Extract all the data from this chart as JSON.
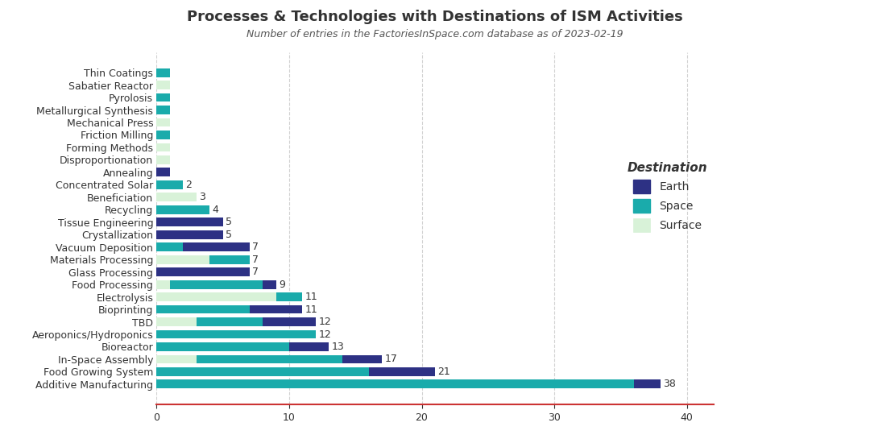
{
  "title": "Processes & Technologies with Destinations of ISM Activities",
  "subtitle": "Number of entries in the FactoriesInSpace.com database as of 2023-02-19",
  "categories": [
    "Thin Coatings",
    "Sabatier Reactor",
    "Pyrolosis",
    "Metallurgical Synthesis",
    "Mechanical Press",
    "Friction Milling",
    "Forming Methods",
    "Disproportionation",
    "Annealing",
    "Concentrated Solar",
    "Beneficiation",
    "Recycling",
    "Tissue Engineering",
    "Crystallization",
    "Vacuum Deposition",
    "Materials Processing",
    "Glass Processing",
    "Food Processing",
    "Electrolysis",
    "Bioprinting",
    "TBD",
    "Aeroponics/Hydroponics",
    "Bioreactor",
    "In-Space Assembly",
    "Food Growing System",
    "Additive Manufacturing"
  ],
  "earth": [
    0,
    0,
    0,
    0,
    0,
    0,
    0,
    0,
    1,
    0,
    0,
    0,
    5,
    5,
    5,
    0,
    7,
    1,
    0,
    4,
    4,
    0,
    3,
    3,
    5,
    2
  ],
  "space": [
    1,
    0,
    1,
    1,
    0,
    1,
    0,
    0,
    0,
    2,
    0,
    4,
    0,
    0,
    2,
    3,
    0,
    7,
    2,
    7,
    5,
    12,
    10,
    11,
    16,
    36
  ],
  "surface": [
    0,
    1,
    0,
    0,
    1,
    0,
    1,
    1,
    0,
    0,
    3,
    0,
    0,
    0,
    0,
    4,
    0,
    1,
    9,
    0,
    3,
    0,
    0,
    3,
    0,
    0
  ],
  "totals": [
    1,
    1,
    1,
    1,
    1,
    1,
    1,
    1,
    1,
    2,
    3,
    4,
    5,
    5,
    7,
    7,
    7,
    9,
    11,
    11,
    12,
    12,
    13,
    17,
    21,
    38
  ],
  "color_earth": "#2d3184",
  "color_space": "#1aabab",
  "color_surface": "#d8f2d8",
  "color_grid": "#cccccc",
  "bg_color": "#ffffff",
  "legend_title": "Destination",
  "xlim": [
    0,
    42
  ],
  "bar_height": 0.7,
  "title_fontsize": 13,
  "subtitle_fontsize": 9,
  "tick_fontsize": 9,
  "label_fontsize": 9
}
